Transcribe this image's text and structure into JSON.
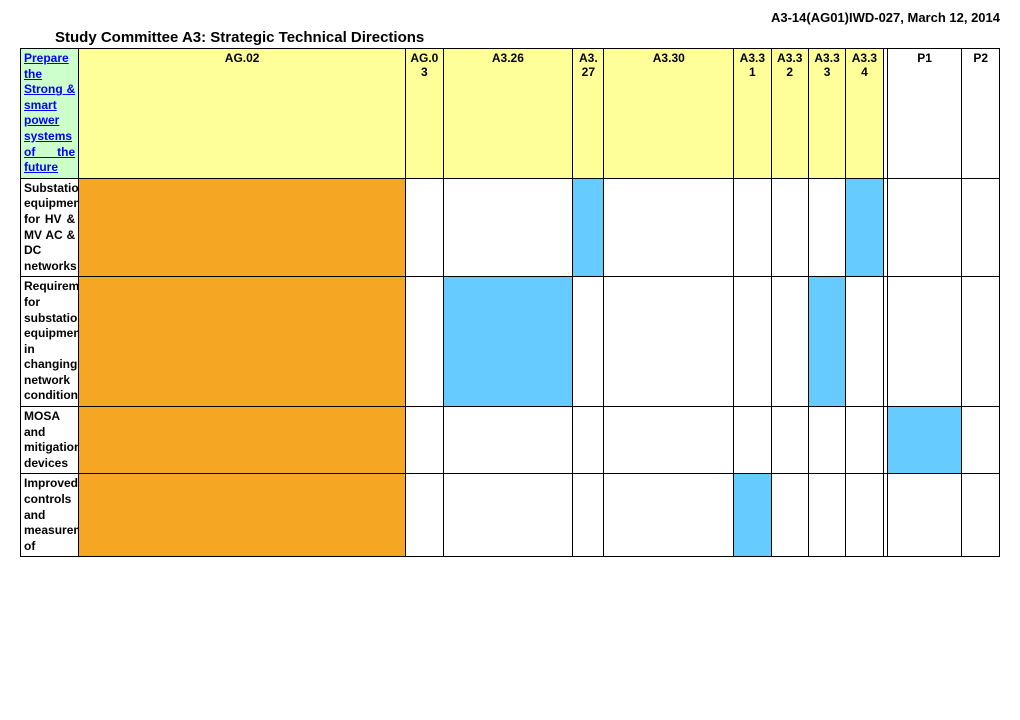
{
  "doc_ref": "A3-14(AG01)IWD-027, March 12, 2014",
  "title": "Study Committee A3: Strategic Technical Directions",
  "colors": {
    "header_bg": "#ffff99",
    "corner_bg": "#ccffcc",
    "corner_text": "#0000ff",
    "orange": "#f5a623",
    "blue": "#66ccff",
    "white": "#ffffff"
  },
  "columns": [
    {
      "key": "ag02",
      "label": "AG.02"
    },
    {
      "key": "ag03",
      "label": "AG.03"
    },
    {
      "key": "a326",
      "label": "A3.26"
    },
    {
      "key": "a327",
      "label": "A3.27"
    },
    {
      "key": "a330",
      "label": "A3.30"
    },
    {
      "key": "a331",
      "label": "A3.31"
    },
    {
      "key": "a332",
      "label": "A3.32"
    },
    {
      "key": "a333",
      "label": "A3.33"
    },
    {
      "key": "a334",
      "label": "A3.34"
    },
    {
      "key": "p1",
      "label": "P1"
    },
    {
      "key": "p2",
      "label": "P2"
    }
  ],
  "corner_label": "Prepare the Strong & smart power systems of the future",
  "rows": [
    {
      "label": "Substation equipment for HV & MV AC & DC networks",
      "cells": {
        "ag02": "orange",
        "ag03": "white",
        "a326": "white",
        "a327": "blue",
        "a330": "white",
        "a331": "white",
        "a332": "white",
        "a333": "white",
        "a334": "blue",
        "p1": "white",
        "p2": "white"
      }
    },
    {
      "label": "Requirements for substation equipment in changing network conditions",
      "cells": {
        "ag02": "orange",
        "ag03": "white",
        "a326": "blue",
        "a327": "white",
        "a330": "white",
        "a331": "white",
        "a332": "white",
        "a333": "blue",
        "a334": "white",
        "p1": "white",
        "p2": "white"
      }
    },
    {
      "label": "MOSA and mitigation devices",
      "cells": {
        "ag02": "orange",
        "ag03": "white",
        "a326": "white",
        "a327": "white",
        "a330": "white",
        "a331": "white",
        "a332": "white",
        "a333": "white",
        "a334": "white",
        "p1": "blue",
        "p2": "white"
      }
    },
    {
      "label": "Improved controls and measurements of",
      "cells": {
        "ag02": "orange",
        "ag03": "white",
        "a326": "white",
        "a327": "white",
        "a330": "white",
        "a331": "blue",
        "a332": "white",
        "a333": "white",
        "a334": "white",
        "p1": "white",
        "p2": "white"
      }
    }
  ]
}
